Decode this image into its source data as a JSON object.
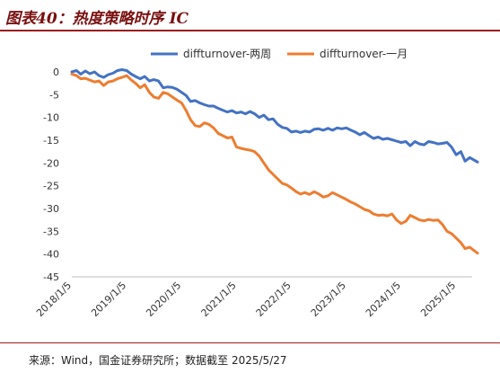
{
  "title": "图表40：热度策略时序 IC",
  "source": "来源：Wind，国金证券研究所；数据截至 2025/5/27",
  "colors": {
    "series1": "#4472C4",
    "series2": "#ED7D31",
    "title": "#7a0f0f",
    "rule": "#9c1b1b"
  },
  "chart_data": {
    "type": "line",
    "title": "",
    "xlabel": "",
    "ylabel": "",
    "ylim": [
      -45,
      0
    ],
    "yticks": [
      0,
      -5,
      -10,
      -15,
      -20,
      -25,
      -30,
      -35,
      -40,
      -45
    ],
    "xlim": [
      "2018/1/5",
      "2025/5/27"
    ],
    "xticks": [
      "2018/1/5",
      "2019/1/5",
      "2020/1/5",
      "2021/1/5",
      "2022/1/5",
      "2023/1/5",
      "2024/1/5",
      "2025/1/5"
    ],
    "grid": false,
    "legend_position": "top",
    "series": [
      {
        "name": "diffturnover-两周",
        "color": "#4472C4",
        "points": [
          [
            "2018/1/5",
            0
          ],
          [
            "2018/2/5",
            0.3
          ],
          [
            "2018/3/5",
            -0.5
          ],
          [
            "2018/4/5",
            0.2
          ],
          [
            "2018/5/5",
            -0.4
          ],
          [
            "2018/6/5",
            0
          ],
          [
            "2018/7/5",
            -0.8
          ],
          [
            "2018/8/5",
            -1.2
          ],
          [
            "2018/9/5",
            -0.6
          ],
          [
            "2018/10/5",
            -0.3
          ],
          [
            "2018/11/5",
            0.3
          ],
          [
            "2018/12/5",
            0.5
          ],
          [
            "2019/1/5",
            0.3
          ],
          [
            "2019/2/5",
            -0.5
          ],
          [
            "2019/3/5",
            -1
          ],
          [
            "2019/4/5",
            -1.5
          ],
          [
            "2019/5/5",
            -1
          ],
          [
            "2019/6/5",
            -2
          ],
          [
            "2019/7/5",
            -1.7
          ],
          [
            "2019/8/5",
            -2
          ],
          [
            "2019/9/5",
            -3.5
          ],
          [
            "2019/10/5",
            -3.3
          ],
          [
            "2019/11/5",
            -3.4
          ],
          [
            "2019/12/5",
            -3.8
          ],
          [
            "2020/1/5",
            -4.5
          ],
          [
            "2020/2/5",
            -5.2
          ],
          [
            "2020/3/5",
            -6.5
          ],
          [
            "2020/4/5",
            -6.3
          ],
          [
            "2020/5/5",
            -6.8
          ],
          [
            "2020/6/5",
            -7.2
          ],
          [
            "2020/7/5",
            -7.5
          ],
          [
            "2020/8/5",
            -7.5
          ],
          [
            "2020/9/5",
            -8
          ],
          [
            "2020/10/5",
            -8.4
          ],
          [
            "2020/11/5",
            -8.8
          ],
          [
            "2020/12/5",
            -8.5
          ],
          [
            "2021/1/5",
            -9
          ],
          [
            "2021/2/5",
            -8.8
          ],
          [
            "2021/3/5",
            -9.2
          ],
          [
            "2021/4/5",
            -8.7
          ],
          [
            "2021/5/5",
            -9.2
          ],
          [
            "2021/6/5",
            -10
          ],
          [
            "2021/7/5",
            -9.5
          ],
          [
            "2021/8/5",
            -10.5
          ],
          [
            "2021/9/5",
            -10.3
          ],
          [
            "2021/10/5",
            -11.5
          ],
          [
            "2021/11/5",
            -12.2
          ],
          [
            "2021/12/5",
            -12.4
          ],
          [
            "2022/1/5",
            -13.2
          ],
          [
            "2022/2/5",
            -13
          ],
          [
            "2022/3/5",
            -13.3
          ],
          [
            "2022/4/5",
            -13
          ],
          [
            "2022/5/5",
            -13.2
          ],
          [
            "2022/6/5",
            -12.6
          ],
          [
            "2022/7/5",
            -12.5
          ],
          [
            "2022/8/5",
            -12.8
          ],
          [
            "2022/9/5",
            -12.4
          ],
          [
            "2022/10/5",
            -12.8
          ],
          [
            "2022/11/5",
            -12.3
          ],
          [
            "2022/12/5",
            -12.5
          ],
          [
            "2023/1/5",
            -12.3
          ],
          [
            "2023/2/5",
            -12.8
          ],
          [
            "2023/3/5",
            -13.2
          ],
          [
            "2023/4/5",
            -13.8
          ],
          [
            "2023/5/5",
            -13.3
          ],
          [
            "2023/6/5",
            -14
          ],
          [
            "2023/7/5",
            -14.6
          ],
          [
            "2023/8/5",
            -14.3
          ],
          [
            "2023/9/5",
            -14.8
          ],
          [
            "2023/10/5",
            -14.6
          ],
          [
            "2023/11/5",
            -14.9
          ],
          [
            "2023/12/5",
            -15.2
          ],
          [
            "2024/1/5",
            -15.5
          ],
          [
            "2024/2/5",
            -15.3
          ],
          [
            "2024/3/5",
            -16.2
          ],
          [
            "2024/4/5",
            -15.3
          ],
          [
            "2024/5/5",
            -15.8
          ],
          [
            "2024/6/5",
            -16
          ],
          [
            "2024/7/5",
            -15.3
          ],
          [
            "2024/8/5",
            -15.5
          ],
          [
            "2024/9/5",
            -15.8
          ],
          [
            "2024/10/5",
            -15.7
          ],
          [
            "2024/11/5",
            -15.5
          ],
          [
            "2024/12/5",
            -16.5
          ],
          [
            "2025/1/5",
            -18.2
          ],
          [
            "2025/2/5",
            -17.5
          ],
          [
            "2025/3/5",
            -19.6
          ],
          [
            "2025/4/5",
            -18.8
          ],
          [
            "2025/5/27",
            -19.8
          ]
        ]
      },
      {
        "name": "diffturnover-一月",
        "color": "#ED7D31",
        "points": [
          [
            "2018/1/5",
            -0.5
          ],
          [
            "2018/2/5",
            -0.8
          ],
          [
            "2018/3/5",
            -1.5
          ],
          [
            "2018/4/5",
            -1.4
          ],
          [
            "2018/5/5",
            -1.8
          ],
          [
            "2018/6/5",
            -2.2
          ],
          [
            "2018/7/5",
            -2
          ],
          [
            "2018/8/5",
            -3
          ],
          [
            "2018/9/5",
            -2.2
          ],
          [
            "2018/10/5",
            -2
          ],
          [
            "2018/11/5",
            -1.5
          ],
          [
            "2018/12/5",
            -1.2
          ],
          [
            "2019/1/5",
            -0.8
          ],
          [
            "2019/2/5",
            -1.8
          ],
          [
            "2019/3/5",
            -2.5
          ],
          [
            "2019/4/5",
            -3.5
          ],
          [
            "2019/5/5",
            -2.8
          ],
          [
            "2019/6/5",
            -4.5
          ],
          [
            "2019/7/5",
            -5.5
          ],
          [
            "2019/8/5",
            -5.8
          ],
          [
            "2019/9/5",
            -4.5
          ],
          [
            "2019/10/5",
            -4.8
          ],
          [
            "2019/11/5",
            -5.5
          ],
          [
            "2019/12/5",
            -6.2
          ],
          [
            "2020/1/5",
            -6.8
          ],
          [
            "2020/2/5",
            -8.5
          ],
          [
            "2020/3/5",
            -10.5
          ],
          [
            "2020/4/5",
            -11.8
          ],
          [
            "2020/5/5",
            -12
          ],
          [
            "2020/6/5",
            -11.2
          ],
          [
            "2020/7/5",
            -11.5
          ],
          [
            "2020/8/5",
            -12.3
          ],
          [
            "2020/9/5",
            -13.5
          ],
          [
            "2020/10/5",
            -14
          ],
          [
            "2020/11/5",
            -14.5
          ],
          [
            "2020/12/5",
            -14.3
          ],
          [
            "2021/1/5",
            -16.5
          ],
          [
            "2021/2/5",
            -16.8
          ],
          [
            "2021/3/5",
            -17
          ],
          [
            "2021/4/5",
            -17.2
          ],
          [
            "2021/5/5",
            -17.5
          ],
          [
            "2021/6/5",
            -18.5
          ],
          [
            "2021/7/5",
            -20
          ],
          [
            "2021/8/5",
            -21.5
          ],
          [
            "2021/9/5",
            -22.5
          ],
          [
            "2021/10/5",
            -23.5
          ],
          [
            "2021/11/5",
            -24.5
          ],
          [
            "2021/12/5",
            -24.8
          ],
          [
            "2022/1/5",
            -25.5
          ],
          [
            "2022/2/5",
            -26.3
          ],
          [
            "2022/3/5",
            -26.8
          ],
          [
            "2022/4/5",
            -26.5
          ],
          [
            "2022/5/5",
            -26.9
          ],
          [
            "2022/6/5",
            -26.3
          ],
          [
            "2022/7/5",
            -26.8
          ],
          [
            "2022/8/5",
            -27.5
          ],
          [
            "2022/9/5",
            -27.2
          ],
          [
            "2022/10/5",
            -26.5
          ],
          [
            "2022/11/5",
            -27
          ],
          [
            "2022/12/5",
            -27.5
          ],
          [
            "2023/1/5",
            -28
          ],
          [
            "2023/2/5",
            -28.6
          ],
          [
            "2023/3/5",
            -29
          ],
          [
            "2023/4/5",
            -29.6
          ],
          [
            "2023/5/5",
            -30.2
          ],
          [
            "2023/6/5",
            -30.5
          ],
          [
            "2023/7/5",
            -31.2
          ],
          [
            "2023/8/5",
            -31.5
          ],
          [
            "2023/9/5",
            -31.4
          ],
          [
            "2023/10/5",
            -31.6
          ],
          [
            "2023/11/5",
            -31.2
          ],
          [
            "2023/12/5",
            -32.5
          ],
          [
            "2024/1/5",
            -33.3
          ],
          [
            "2024/2/5",
            -32.8
          ],
          [
            "2024/3/5",
            -31.5
          ],
          [
            "2024/4/5",
            -32
          ],
          [
            "2024/5/5",
            -32.5
          ],
          [
            "2024/6/5",
            -32.7
          ],
          [
            "2024/7/5",
            -32.4
          ],
          [
            "2024/8/5",
            -32.6
          ],
          [
            "2024/9/5",
            -32.5
          ],
          [
            "2024/10/5",
            -33.5
          ],
          [
            "2024/11/5",
            -35
          ],
          [
            "2024/12/5",
            -35.5
          ],
          [
            "2025/1/5",
            -36.5
          ],
          [
            "2025/2/5",
            -37.5
          ],
          [
            "2025/3/5",
            -38.8
          ],
          [
            "2025/4/5",
            -38.5
          ],
          [
            "2025/5/27",
            -39.8
          ]
        ]
      }
    ]
  }
}
